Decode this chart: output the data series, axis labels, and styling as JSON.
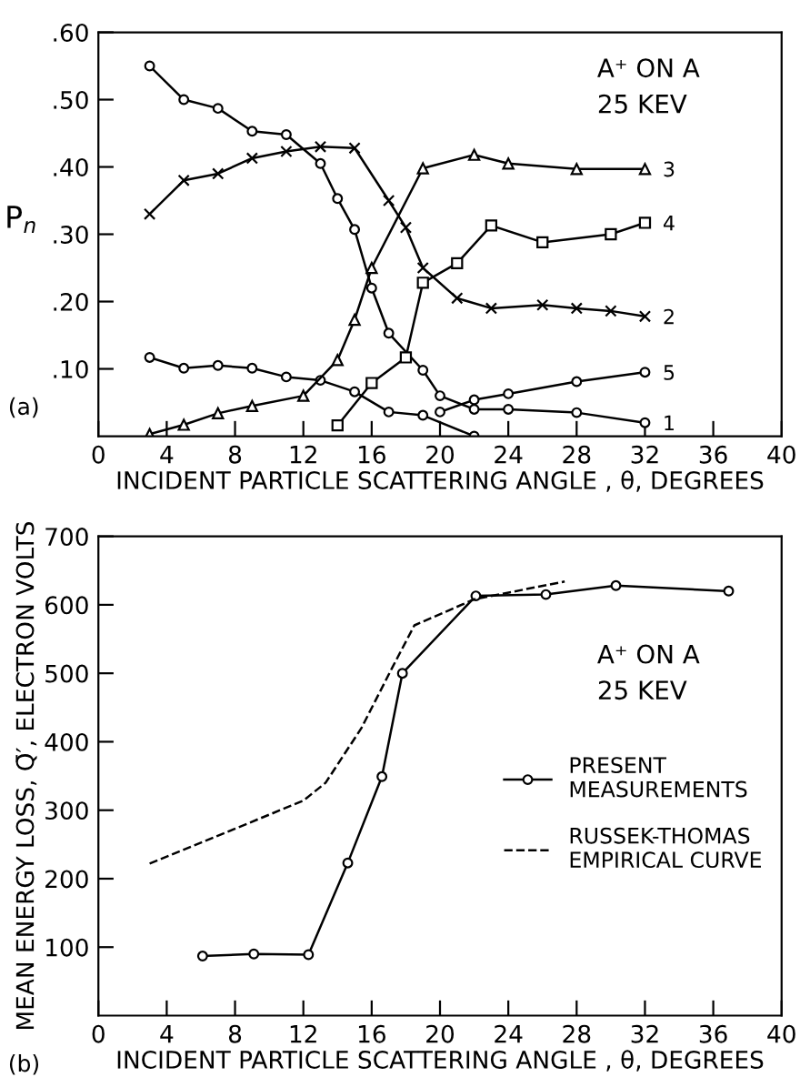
{
  "chart_data": [
    {
      "type": "line",
      "ylabel": "P$_{n}$",
      "xlabel": "INCIDENT PARTICLE SCATTERING ANGLE , θ, DEGREES",
      "xlim": [
        0,
        40
      ],
      "xticks": [
        0,
        4,
        8,
        12,
        16,
        20,
        24,
        28,
        32,
        36,
        40
      ],
      "ylim": [
        0,
        0.6
      ],
      "yticks": [
        {
          "value": 0.1,
          "label": ".10"
        },
        {
          "value": 0.2,
          "label": ".20"
        },
        {
          "value": 0.3,
          "label": ".30"
        },
        {
          "value": 0.4,
          "label": ".40"
        },
        {
          "value": 0.5,
          "label": ".50"
        },
        {
          "value": 0.6,
          "label": ".60"
        }
      ],
      "grid": false,
      "line_style": "solid",
      "annotations": [
        "A⁺ ON A\n25 KEV",
        "(a)",
        "1",
        "2",
        "3",
        "4",
        "5"
      ],
      "series": [
        {
          "color": "#000000",
          "marker": "circle",
          "x": [
            3,
            5,
            7,
            9,
            11,
            13,
            15,
            17,
            19,
            22
          ],
          "values": [
            0.117,
            0.101,
            0.105,
            0.101,
            0.088,
            0.083,
            0.066,
            0.036,
            0.031,
            0.0
          ]
        },
        {
          "color": "#000000",
          "marker": "circle",
          "x": [
            3,
            5,
            7,
            9,
            11,
            13,
            14,
            15,
            16,
            17,
            19,
            20,
            22,
            24,
            28,
            32
          ],
          "values": [
            0.55,
            0.5,
            0.487,
            0.453,
            0.448,
            0.405,
            0.353,
            0.307,
            0.22,
            0.153,
            0.098,
            0.06,
            0.04,
            0.04,
            0.035,
            0.02
          ]
        },
        {
          "color": "#000000",
          "marker": "cross",
          "x": [
            3,
            5,
            7,
            9,
            11,
            13,
            15,
            17,
            18,
            19,
            21,
            23,
            26,
            28,
            30,
            32
          ],
          "values": [
            0.33,
            0.38,
            0.39,
            0.413,
            0.423,
            0.43,
            0.428,
            0.35,
            0.31,
            0.25,
            0.205,
            0.19,
            0.195,
            0.19,
            0.186,
            0.178
          ]
        },
        {
          "color": "#000000",
          "marker": "triangle",
          "x": [
            3,
            5,
            7,
            9,
            12,
            14,
            15,
            16,
            19,
            22,
            24,
            28,
            32
          ],
          "values": [
            0.003,
            0.017,
            0.034,
            0.045,
            0.06,
            0.113,
            0.173,
            0.25,
            0.398,
            0.418,
            0.405,
            0.397,
            0.397
          ]
        },
        {
          "color": "#000000",
          "marker": "square",
          "x": [
            14,
            16,
            18,
            19,
            21,
            23,
            26,
            30,
            32
          ],
          "values": [
            0.016,
            0.079,
            0.117,
            0.228,
            0.257,
            0.313,
            0.288,
            0.3,
            0.317
          ]
        },
        {
          "color": "#000000",
          "marker": "circle",
          "x": [
            20,
            22,
            24,
            28,
            32
          ],
          "values": [
            0.036,
            0.054,
            0.063,
            0.081,
            0.095
          ]
        }
      ]
    },
    {
      "type": "line",
      "ylabel": "MEAN ENERGY LOSS, Q̄′, ELECTRON VOLTS",
      "xlabel": "INCIDENT PARTICLE SCATTERING ANGLE , θ, DEGREES",
      "xlim": [
        0,
        40
      ],
      "xticks": [
        0,
        4,
        8,
        12,
        16,
        20,
        24,
        28,
        32,
        36,
        40
      ],
      "ylim": [
        0,
        700
      ],
      "yticks": [
        100,
        200,
        300,
        400,
        500,
        600,
        700
      ],
      "grid": false,
      "legend": "right",
      "annotations": [
        "A⁺ ON A\n25 KEV",
        "(b)"
      ],
      "series": [
        {
          "name": "PRESENT\nMEASUREMENTS",
          "color": "#000000",
          "marker": "circle",
          "line_style": "solid",
          "x": [
            6.1,
            9.1,
            12.3,
            14.6,
            16.6,
            17.8,
            22.1,
            26.2,
            30.3,
            36.9
          ],
          "values": [
            87,
            90,
            89,
            223,
            349,
            500,
            613,
            615,
            628,
            620
          ]
        },
        {
          "name": "RUSSEK-THOMAS\nEMPIRICAL CURVE",
          "color": "#000000",
          "marker": "none",
          "line_style": "dashed",
          "x": [
            3,
            8.1,
            12,
            13.3,
            15.4,
            17.2,
            18.5,
            22,
            27.3
          ],
          "values": [
            222,
            274,
            314,
            340,
            420,
            508,
            570,
            608,
            634
          ]
        }
      ]
    }
  ]
}
